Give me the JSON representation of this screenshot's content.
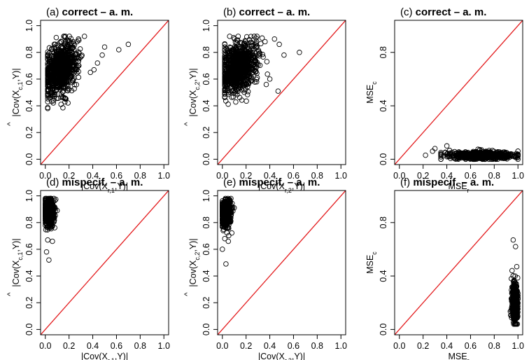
{
  "colors": {
    "identity_line": "#e31a1c",
    "points": "#000000",
    "frame": "#000000"
  },
  "panel_layout": {
    "columns": 3,
    "rows": 2
  },
  "chart_data": [
    {
      "type": "scatter",
      "tag": "(a)",
      "title": "correct – a. m.",
      "xlabel": "|Cov(X_{r,1},Y)|",
      "ylabel": "|Cov-hat(X_{c,1},Y)|",
      "xlim": [
        0,
        1
      ],
      "ylim": [
        0,
        1
      ],
      "xticks": [
        "0.0",
        "0.2",
        "0.4",
        "0.6",
        "0.8",
        "1.0"
      ],
      "yticks": [
        "0.0",
        "0.2",
        "0.4",
        "0.6",
        "0.8",
        "1.0"
      ],
      "reference_line": "y = x",
      "cloud": {
        "n": 900,
        "x_center": 0.13,
        "x_sd": 0.07,
        "y_center": 0.68,
        "y_sd": 0.09,
        "x_range": [
          0.02,
          0.7
        ],
        "y_range": [
          0.38,
          0.92
        ],
        "trend": 0.4
      },
      "outliers": [
        [
          0.7,
          0.86
        ],
        [
          0.62,
          0.82
        ],
        [
          0.48,
          0.78
        ],
        [
          0.44,
          0.72
        ],
        [
          0.41,
          0.67
        ],
        [
          0.38,
          0.65
        ],
        [
          0.33,
          0.92
        ],
        [
          0.28,
          0.9
        ],
        [
          0.5,
          0.84
        ]
      ]
    },
    {
      "type": "scatter",
      "tag": "(b)",
      "title": "correct – a. m.",
      "xlabel": "|Cov(X_{r,2},Y)|",
      "ylabel": "|Cov-hat(X_{c,2},Y)|",
      "xlim": [
        0,
        1
      ],
      "ylim": [
        0,
        1
      ],
      "xticks": [
        "0.0",
        "0.2",
        "0.4",
        "0.6",
        "0.8",
        "1.0"
      ],
      "yticks": [
        "0.0",
        "0.2",
        "0.4",
        "0.6",
        "0.8",
        "1.0"
      ],
      "reference_line": "y = x",
      "cloud": {
        "n": 900,
        "x_center": 0.14,
        "x_sd": 0.075,
        "y_center": 0.69,
        "y_sd": 0.09,
        "x_range": [
          0.02,
          0.65
        ],
        "y_range": [
          0.4,
          0.92
        ],
        "trend": 0.3
      },
      "outliers": [
        [
          0.65,
          0.8
        ],
        [
          0.52,
          0.78
        ],
        [
          0.48,
          0.86
        ],
        [
          0.44,
          0.9
        ],
        [
          0.4,
          0.6
        ],
        [
          0.37,
          0.56
        ],
        [
          0.47,
          0.51
        ],
        [
          0.36,
          0.88
        ]
      ]
    },
    {
      "type": "scatter",
      "tag": "(c)",
      "title": "correct – a. m.",
      "xlabel": "MSE_r",
      "ylabel": "MSE_c",
      "xlim": [
        0,
        1
      ],
      "ylim": [
        0,
        1
      ],
      "xticks": [
        "0.0",
        "0.2",
        "0.4",
        "0.6",
        "0.8",
        "1.0"
      ],
      "yticks": [
        "0.0",
        "0.4",
        "0.8"
      ],
      "reference_line": "y = x",
      "cloud": {
        "n": 700,
        "x_center": 0.7,
        "x_sd": 0.14,
        "y_center": 0.028,
        "y_sd": 0.014,
        "x_range": [
          0.35,
          1.0
        ],
        "y_range": [
          0.0,
          0.1
        ],
        "trend": 0
      },
      "outliers": [
        [
          0.22,
          0.03
        ],
        [
          0.3,
          0.08
        ],
        [
          0.35,
          0.05
        ],
        [
          0.4,
          0.1
        ],
        [
          0.28,
          0.06
        ]
      ]
    },
    {
      "type": "scatter",
      "tag": "(d)",
      "title": "mispecif. – a. m.",
      "xlabel": "|Cov(X_{r,1},Y)|",
      "ylabel": "|Cov-hat(X_{c,1},Y)|",
      "xlim": [
        0,
        1
      ],
      "ylim": [
        0,
        1
      ],
      "xticks": [
        "0.0",
        "0.2",
        "0.4",
        "0.6",
        "0.8",
        "1.0"
      ],
      "yticks": [
        "0.0",
        "0.2",
        "0.4",
        "0.6",
        "0.8",
        "1.0"
      ],
      "reference_line": "y = x",
      "cloud": {
        "n": 600,
        "x_center": 0.03,
        "x_sd": 0.02,
        "y_center": 0.88,
        "y_sd": 0.05,
        "x_range": [
          0.0,
          0.11
        ],
        "y_range": [
          0.66,
          0.98
        ],
        "trend": 0
      },
      "outliers": [
        [
          0.01,
          0.58
        ],
        [
          0.03,
          0.52
        ],
        [
          0.1,
          0.89
        ],
        [
          0.06,
          0.66
        ],
        [
          0.02,
          0.67
        ]
      ]
    },
    {
      "type": "scatter",
      "tag": "(e)",
      "title": "mispecif. – a. m.",
      "xlabel": "|Cov(X_{r,2},Y)|",
      "ylabel": "|Cov-hat(X_{c,2},Y)|",
      "xlim": [
        0,
        1
      ],
      "ylim": [
        0,
        1
      ],
      "xticks": [
        "0.0",
        "0.2",
        "0.4",
        "0.6",
        "0.8",
        "1.0"
      ],
      "yticks": [
        "0.0",
        "0.2",
        "0.4",
        "0.6",
        "0.8",
        "1.0"
      ],
      "reference_line": "y = x",
      "cloud": {
        "n": 600,
        "x_center": 0.03,
        "x_sd": 0.02,
        "y_center": 0.87,
        "y_sd": 0.05,
        "x_range": [
          0.0,
          0.11
        ],
        "y_range": [
          0.66,
          0.98
        ],
        "trend": 0
      },
      "outliers": [
        [
          0.0,
          0.6
        ],
        [
          0.03,
          0.49
        ],
        [
          0.1,
          0.91
        ],
        [
          0.05,
          0.66
        ],
        [
          0.02,
          0.68
        ]
      ]
    },
    {
      "type": "scatter",
      "tag": "(f)",
      "title": "mispecif. – a. m.",
      "xlabel": "MSE_r",
      "ylabel": "MSE_c",
      "xlim": [
        0,
        1
      ],
      "ylim": [
        0,
        1
      ],
      "xticks": [
        "0.0",
        "0.2",
        "0.4",
        "0.6",
        "0.8",
        "1.0"
      ],
      "yticks": [
        "0.0",
        "0.4",
        "0.8"
      ],
      "reference_line": "y = x",
      "cloud": {
        "n": 600,
        "x_center": 0.975,
        "x_sd": 0.012,
        "y_center": 0.2,
        "y_sd": 0.07,
        "x_range": [
          0.93,
          1.0
        ],
        "y_range": [
          0.04,
          0.48
        ],
        "trend": 0
      },
      "outliers": [
        [
          0.96,
          0.67
        ],
        [
          0.98,
          0.62
        ],
        [
          0.99,
          0.47
        ],
        [
          0.95,
          0.44
        ]
      ]
    }
  ]
}
